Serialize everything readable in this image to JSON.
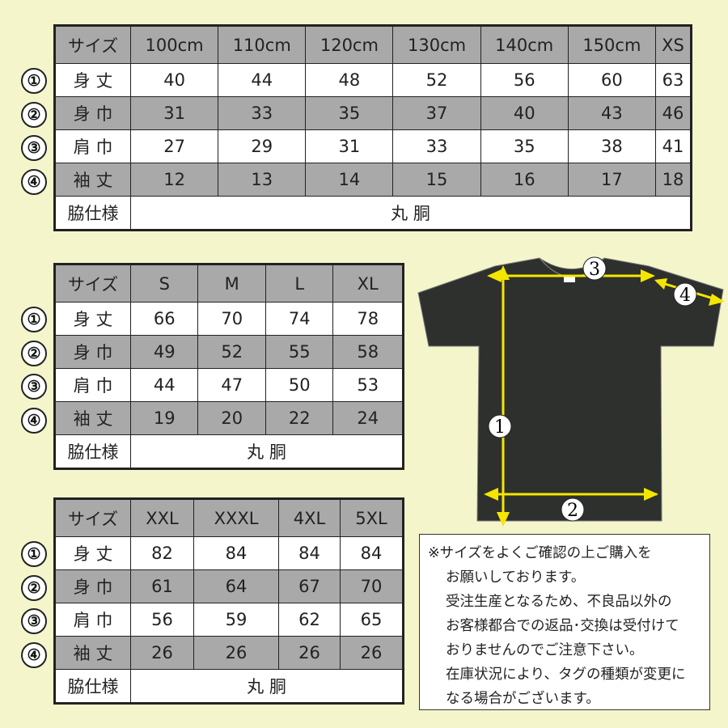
{
  "row_label_header": "サイズ",
  "row_labels": [
    "身 丈",
    "身 巾",
    "肩 巾",
    "袖 丈"
  ],
  "side_label": "脇仕様",
  "side_value": "丸 胴",
  "markers": [
    "①",
    "②",
    "③",
    "④"
  ],
  "tables": [
    {
      "sizes": [
        "100cm",
        "110cm",
        "120cm",
        "130cm",
        "140cm",
        "150cm",
        "XS"
      ],
      "rows": [
        [
          "40",
          "44",
          "48",
          "52",
          "56",
          "60",
          "63"
        ],
        [
          "31",
          "33",
          "35",
          "37",
          "40",
          "43",
          "46"
        ],
        [
          "27",
          "29",
          "31",
          "33",
          "35",
          "38",
          "41"
        ],
        [
          "12",
          "13",
          "14",
          "15",
          "16",
          "17",
          "18"
        ]
      ]
    },
    {
      "sizes": [
        "S",
        "M",
        "L",
        "XL"
      ],
      "rows": [
        [
          "66",
          "70",
          "74",
          "78"
        ],
        [
          "49",
          "52",
          "55",
          "58"
        ],
        [
          "44",
          "47",
          "50",
          "53"
        ],
        [
          "19",
          "20",
          "22",
          "24"
        ]
      ]
    },
    {
      "sizes": [
        "XXL",
        "XXXL",
        "4XL",
        "5XL"
      ],
      "rows": [
        [
          "82",
          "84",
          "84",
          "84"
        ],
        [
          "61",
          "64",
          "67",
          "70"
        ],
        [
          "56",
          "59",
          "62",
          "65"
        ],
        [
          "26",
          "26",
          "26",
          "26"
        ]
      ]
    }
  ],
  "diagram": {
    "labels": [
      "1",
      "2",
      "3",
      "4"
    ],
    "shirt_color": "#2e302e",
    "arrow_color": "#f5e600"
  },
  "note_lines": [
    "※サイズをよくご確認の上ご購入を",
    "お願いしております。",
    "受注生産となるため、不良品以外の",
    "お客様都合での返品･交換は受付けて",
    "おりませんのでご注意下さい。",
    "在庫状況により、タグの種類が変更に",
    "なる場合がございます。"
  ],
  "colors": {
    "background": "#f5f5cc",
    "header_gray": "#a9a9a9"
  }
}
